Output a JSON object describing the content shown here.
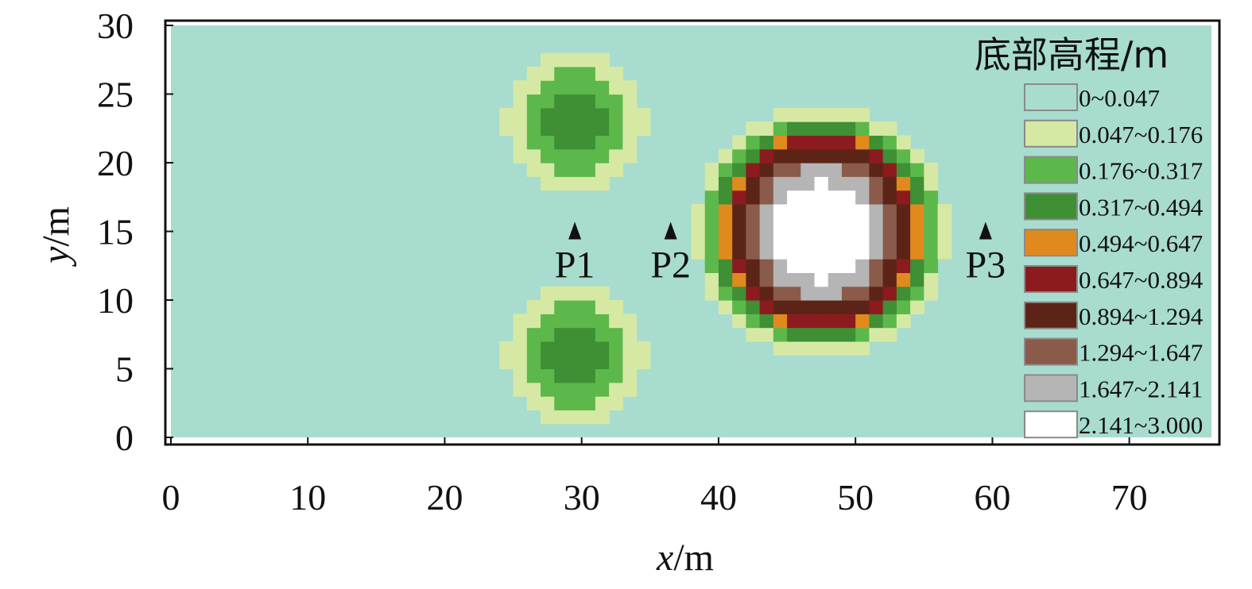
{
  "chart_data": {
    "type": "heatmap",
    "xlabel_italic": "x",
    "xlabel_unit": "/m",
    "ylabel_italic": "y",
    "ylabel_unit": "/m",
    "xlim": [
      0,
      76
    ],
    "ylim": [
      0,
      30
    ],
    "xticks": [
      "0",
      "10",
      "20",
      "30",
      "40",
      "50",
      "60",
      "70"
    ],
    "yticks": [
      "0",
      "5",
      "10",
      "15",
      "20",
      "25",
      "30"
    ],
    "legend_title": "底部高程/m",
    "legend": [
      {
        "label": "0~0.047",
        "color": "#a8dccf"
      },
      {
        "label": "0.047~0.176",
        "color": "#d6e9a4"
      },
      {
        "label": "0.176~0.317",
        "color": "#5cb84a"
      },
      {
        "label": "0.317~0.494",
        "color": "#3f8f34"
      },
      {
        "label": "0.494~0.647",
        "color": "#e08a1e"
      },
      {
        "label": "0.647~0.894",
        "color": "#8c1b1e"
      },
      {
        "label": "0.894~1.294",
        "color": "#5c2416"
      },
      {
        "label": "1.294~1.647",
        "color": "#8a5a4a"
      },
      {
        "label": "1.647~2.141",
        "color": "#b5b5b5"
      },
      {
        "label": "2.141~3.000",
        "color": "#ffffff"
      }
    ],
    "bumps": [
      {
        "x": 29.5,
        "y": 23,
        "peak": 0.45,
        "radius": 6.5
      },
      {
        "x": 29.5,
        "y": 6,
        "peak": 0.45,
        "radius": 6.5
      },
      {
        "x": 47.5,
        "y": 15,
        "peak": 3.0,
        "radius": 10
      }
    ],
    "probes": [
      {
        "label": "P1",
        "x": 29.5,
        "y": 15
      },
      {
        "label": "P2",
        "x": 36.5,
        "y": 15
      },
      {
        "label": "P3",
        "x": 59.5,
        "y": 15
      }
    ]
  }
}
